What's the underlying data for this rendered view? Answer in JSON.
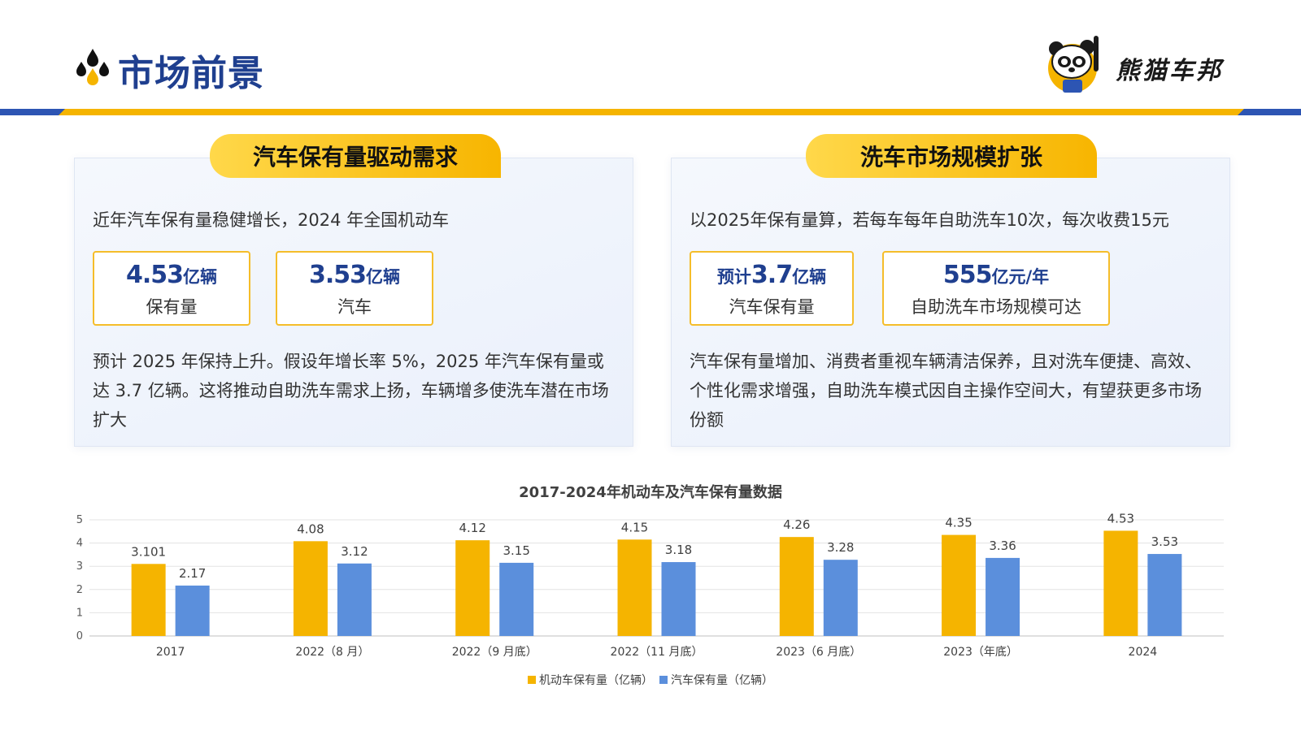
{
  "header": {
    "title": "市场前景",
    "brand_name": "熊猫车邦",
    "title_icon": "drops-icon",
    "logo_icon": "panda-mascot-icon"
  },
  "colors": {
    "navy": "#1f3f8f",
    "gold": "#f5b400",
    "blue": "#5b8fdc",
    "stripe_blue": "#2d55b3"
  },
  "left_card": {
    "tab_label": "汽车保有量驱动需求",
    "intro": "近年汽车保有量稳健增长，2024 年全国机动车",
    "stats": [
      {
        "value": "4.53",
        "unit": "亿辆",
        "label": "保有量"
      },
      {
        "value": "3.53",
        "unit": "亿辆",
        "label": "汽车"
      }
    ],
    "body": "预计 2025 年保持上升。假设年增长率 5%，2025 年汽车保有量或达 3.7 亿辆。这将推动自助洗车需求上扬，车辆增多使洗车潜在市场扩大"
  },
  "right_card": {
    "tab_label": "洗车市场规模扩张",
    "intro": "以2025年保有量算，若每车每年自助洗车10次，每次收费15元",
    "stats": [
      {
        "value_prefix": "预计",
        "value": "3.7",
        "unit": "亿辆",
        "label": "汽车保有量"
      },
      {
        "value": "555",
        "unit": "亿元/年",
        "label": "自助洗车市场规模可达"
      }
    ],
    "body": "汽车保有量增加、消费者重视车辆清洁保养，且对洗车便捷、高效、个性化需求增强，自助洗车模式因自主操作空间大，有望获更多市场份额"
  },
  "chart_data": {
    "type": "bar",
    "title": "2017-2024年机动车及汽车保有量数据",
    "categories": [
      "2017",
      "2022（8 月）",
      "2022（9 月底）",
      "2022（11 月底）",
      "2023（6 月底）",
      "2023（年底）",
      "2024"
    ],
    "series": [
      {
        "name": "机动车保有量（亿辆）",
        "color": "#f5b400",
        "values": [
          3.101,
          4.08,
          4.12,
          4.15,
          4.26,
          4.35,
          4.53
        ]
      },
      {
        "name": "汽车保有量（亿辆）",
        "color": "#5b8fdc",
        "values": [
          2.17,
          3.12,
          3.15,
          3.18,
          3.28,
          3.36,
          3.53
        ]
      }
    ],
    "ylim": [
      0,
      5
    ],
    "yticks": [
      0,
      1,
      2,
      3,
      4,
      5
    ],
    "grid": true,
    "legend": "bottom-center"
  }
}
